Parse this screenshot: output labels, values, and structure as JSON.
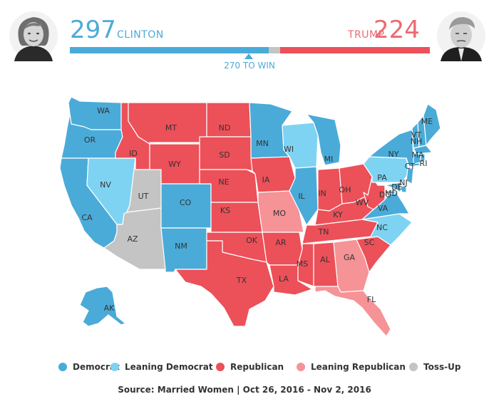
{
  "colors": {
    "democrat": "#4aabd8",
    "leaning_democrat": "#7fd3f2",
    "republican": "#ec5059",
    "leaning_republican": "#f59397",
    "tossup": "#c4c4c4",
    "dem_text": "#4aabd8",
    "rep_text": "#ec6a72"
  },
  "header": {
    "democrat": {
      "count": "297",
      "name": "CLINTON",
      "avatar_icon": "clinton-portrait-icon"
    },
    "republican": {
      "count": "224",
      "name": "TRUMP",
      "avatar_icon": "trump-portrait-icon"
    },
    "win_label": "270 TO WIN",
    "progress": {
      "democrat": 297,
      "tossup": 17,
      "republican": 224,
      "total": 538
    }
  },
  "map": {
    "states": [
      {
        "abbr": "WA",
        "category": "democrat"
      },
      {
        "abbr": "OR",
        "category": "democrat"
      },
      {
        "abbr": "CA",
        "category": "democrat"
      },
      {
        "abbr": "NV",
        "category": "leaning_democrat"
      },
      {
        "abbr": "ID",
        "category": "republican"
      },
      {
        "abbr": "UT",
        "category": "tossup"
      },
      {
        "abbr": "AZ",
        "category": "tossup"
      },
      {
        "abbr": "MT",
        "category": "republican"
      },
      {
        "abbr": "WY",
        "category": "republican"
      },
      {
        "abbr": "CO",
        "category": "democrat"
      },
      {
        "abbr": "NM",
        "category": "democrat"
      },
      {
        "abbr": "ND",
        "category": "republican"
      },
      {
        "abbr": "SD",
        "category": "republican"
      },
      {
        "abbr": "NE",
        "category": "republican"
      },
      {
        "abbr": "KS",
        "category": "republican"
      },
      {
        "abbr": "OK",
        "category": "republican"
      },
      {
        "abbr": "TX",
        "category": "republican"
      },
      {
        "abbr": "MN",
        "category": "democrat"
      },
      {
        "abbr": "IA",
        "category": "republican"
      },
      {
        "abbr": "MO",
        "category": "leaning_republican"
      },
      {
        "abbr": "AR",
        "category": "republican"
      },
      {
        "abbr": "LA",
        "category": "republican"
      },
      {
        "abbr": "WI",
        "category": "leaning_democrat"
      },
      {
        "abbr": "IL",
        "category": "democrat"
      },
      {
        "abbr": "MI",
        "category": "democrat"
      },
      {
        "abbr": "IN",
        "category": "republican"
      },
      {
        "abbr": "OH",
        "category": "republican"
      },
      {
        "abbr": "KY",
        "category": "republican"
      },
      {
        "abbr": "TN",
        "category": "republican"
      },
      {
        "abbr": "MS",
        "category": "republican"
      },
      {
        "abbr": "AL",
        "category": "republican"
      },
      {
        "abbr": "GA",
        "category": "leaning_republican"
      },
      {
        "abbr": "FL",
        "category": "leaning_republican"
      },
      {
        "abbr": "SC",
        "category": "republican"
      },
      {
        "abbr": "NC",
        "category": "leaning_democrat"
      },
      {
        "abbr": "VA",
        "category": "democrat"
      },
      {
        "abbr": "WV",
        "category": "republican"
      },
      {
        "abbr": "PA",
        "category": "leaning_democrat"
      },
      {
        "abbr": "NY",
        "category": "democrat"
      },
      {
        "abbr": "VT",
        "category": "democrat"
      },
      {
        "abbr": "NH",
        "category": "democrat"
      },
      {
        "abbr": "ME",
        "category": "democrat"
      },
      {
        "abbr": "MA",
        "category": "democrat"
      },
      {
        "abbr": "CT",
        "category": "democrat"
      },
      {
        "abbr": "RI",
        "category": "democrat"
      },
      {
        "abbr": "NJ",
        "category": "democrat"
      },
      {
        "abbr": "DE",
        "category": "democrat"
      },
      {
        "abbr": "MD",
        "category": "democrat"
      },
      {
        "abbr": "DC",
        "category": "democrat"
      },
      {
        "abbr": "AK",
        "category": "democrat"
      }
    ]
  },
  "legend": [
    {
      "label": "Democrat",
      "category": "democrat"
    },
    {
      "label": "Leaning Democrat",
      "category": "leaning_democrat"
    },
    {
      "label": "Republican",
      "category": "republican"
    },
    {
      "label": "Leaning Republican",
      "category": "leaning_republican"
    },
    {
      "label": "Toss-Up",
      "category": "tossup"
    }
  ],
  "source": "Source: Married Women | Oct 26, 2016 - Nov 2, 2016"
}
